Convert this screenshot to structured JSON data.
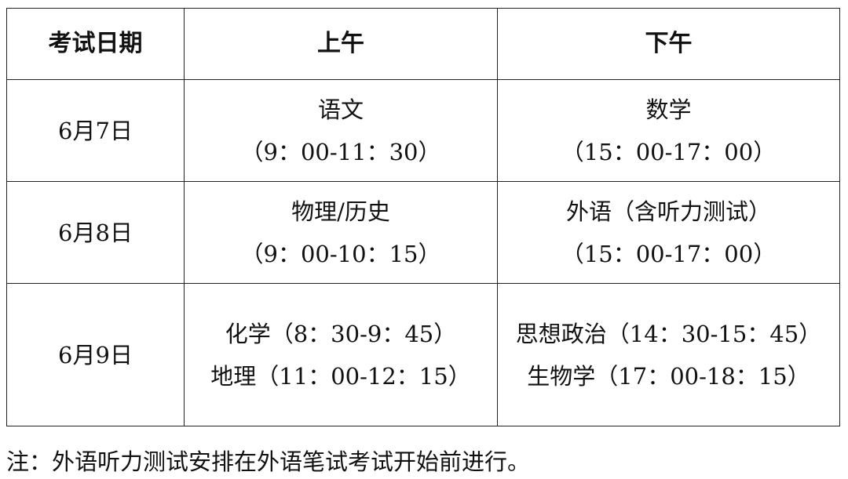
{
  "table": {
    "headers": [
      "考试日期",
      "上午",
      "下午"
    ],
    "rows": [
      {
        "date": "6月7日",
        "morning": [
          "语文",
          "（9：00-11：30）"
        ],
        "afternoon": [
          "数学",
          "（15：00-17：00）"
        ]
      },
      {
        "date": "6月8日",
        "morning": [
          "物理/历史",
          "（9：00-10：15）"
        ],
        "afternoon": [
          "外语（含听力测试）",
          "（15：00-17：00）"
        ]
      },
      {
        "date": "6月9日",
        "morning": [
          "化学（8：30-9：45）",
          "地理（11：00-12：15）"
        ],
        "afternoon": [
          "思想政治（14：30-15：45）",
          "生物学（17：00-18：15）"
        ]
      }
    ]
  },
  "note": "注：外语听力测试安排在外语笔试考试开始前进行。"
}
